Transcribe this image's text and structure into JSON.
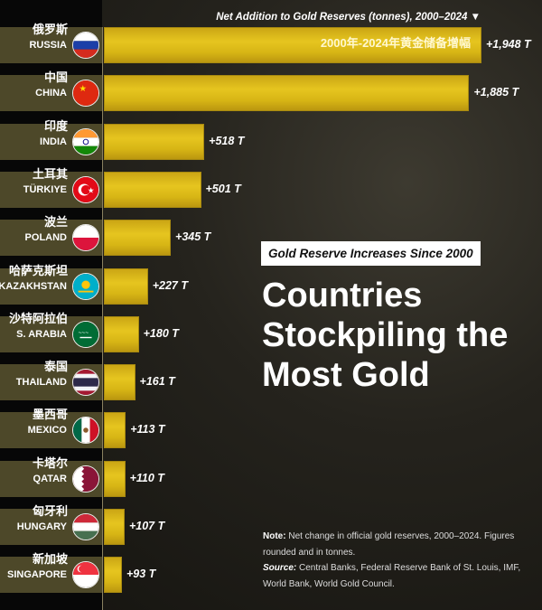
{
  "chart_data": {
    "type": "bar",
    "orientation": "horizontal",
    "title": "Net Addition to Gold Reserves (tonnes), 2000–2024 ▼",
    "title_cn": "2000年-2024年黄金储备增幅",
    "unit": "T",
    "bar_color": "#dcbc1b",
    "categories": [
      {
        "cn": "俄罗斯",
        "en": "RUSSIA",
        "flag": "russia-flag"
      },
      {
        "cn": "中国",
        "en": "CHINA",
        "flag": "china-flag"
      },
      {
        "cn": "印度",
        "en": "INDIA",
        "flag": "india-flag"
      },
      {
        "cn": "土耳其",
        "en": "TÜRKIYE",
        "flag": "turkiye-flag"
      },
      {
        "cn": "波兰",
        "en": "POLAND",
        "flag": "poland-flag"
      },
      {
        "cn": "哈萨克斯坦",
        "en": "KAZAKHSTAN",
        "flag": "kazakhstan-flag"
      },
      {
        "cn": "沙特阿拉伯",
        "en": "S. ARABIA",
        "flag": "saudi-arabia-flag"
      },
      {
        "cn": "泰国",
        "en": "THAILAND",
        "flag": "thailand-flag"
      },
      {
        "cn": "墨西哥",
        "en": "MEXICO",
        "flag": "mexico-flag"
      },
      {
        "cn": "卡塔尔",
        "en": "QATAR",
        "flag": "qatar-flag"
      },
      {
        "cn": "匈牙利",
        "en": "HUNGARY",
        "flag": "hungary-flag"
      },
      {
        "cn": "新加坡",
        "en": "SINGAPORE",
        "flag": "singapore-flag"
      }
    ],
    "values": [
      1948,
      1885,
      518,
      501,
      345,
      227,
      180,
      161,
      113,
      110,
      107,
      93
    ],
    "labels": [
      "+1,948 T",
      "+1,885 T",
      "+518 T",
      "+501 T",
      "+345 T",
      "+227 T",
      "+180 T",
      "+161 T",
      "+113 T",
      "+110 T",
      "+107 T",
      "+93 T"
    ]
  },
  "badge": "Gold Reserve Increases Since 2000",
  "headline": "Countries Stockpiling the Most Gold",
  "notes": {
    "note_label": "Note:",
    "note_text": " Net change in official gold reserves, 2000–2024. Figures rounded and in tonnes.",
    "source_label": "Source:",
    "source_text": " Central Banks, Federal Reserve Bank of St. Louis, IMF, World Bank, World Gold Council."
  }
}
